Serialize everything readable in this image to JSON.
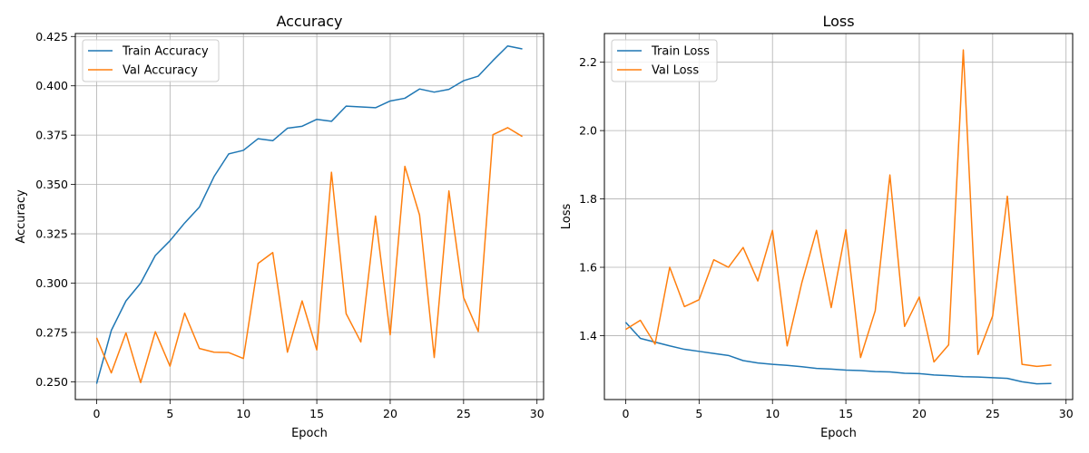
{
  "colors": {
    "train": "#1f77b4",
    "val": "#ff7f0e",
    "grid": "#b0b0b0"
  },
  "chart_data": [
    {
      "type": "line",
      "title": "Accuracy",
      "xlabel": "Epoch",
      "ylabel": "Accuracy",
      "xlim": [
        -1.45,
        30.45
      ],
      "ylim": [
        0.241,
        0.4265
      ],
      "xticks": [
        0,
        5,
        10,
        15,
        20,
        25,
        30
      ],
      "xtick_labels": [
        "0",
        "5",
        "10",
        "15",
        "20",
        "25",
        "30"
      ],
      "yticks": [
        0.25,
        0.275,
        0.3,
        0.325,
        0.35,
        0.375,
        0.4,
        0.425
      ],
      "ytick_labels": [
        "0.250",
        "0.275",
        "0.300",
        "0.325",
        "0.350",
        "0.375",
        "0.400",
        "0.425"
      ],
      "grid": true,
      "legend_position": "upper-left",
      "x": [
        0,
        1,
        2,
        3,
        4,
        5,
        6,
        7,
        8,
        9,
        10,
        11,
        12,
        13,
        14,
        15,
        16,
        17,
        18,
        19,
        20,
        21,
        22,
        23,
        24,
        25,
        26,
        27,
        28,
        29
      ],
      "series": [
        {
          "name": "Train Accuracy",
          "color": "#1f77b4",
          "values": [
            0.249,
            0.276,
            0.291,
            0.3,
            0.314,
            0.3215,
            0.3305,
            0.3385,
            0.354,
            0.3655,
            0.3673,
            0.3732,
            0.3722,
            0.3785,
            0.3795,
            0.383,
            0.382,
            0.3897,
            0.3893,
            0.3889,
            0.3923,
            0.3937,
            0.3984,
            0.3968,
            0.3982,
            0.4026,
            0.4049,
            0.4128,
            0.4202,
            0.4187
          ]
        },
        {
          "name": "Val Accuracy",
          "color": "#ff7f0e",
          "values": [
            0.2723,
            0.2545,
            0.2748,
            0.2496,
            0.2754,
            0.2579,
            0.2848,
            0.2669,
            0.265,
            0.2648,
            0.2618,
            0.31,
            0.3155,
            0.265,
            0.291,
            0.2661,
            0.3562,
            0.2845,
            0.2702,
            0.334,
            0.2738,
            0.3592,
            0.3345,
            0.2623,
            0.3467,
            0.2927,
            0.2755,
            0.3752,
            0.3788,
            0.3743
          ]
        }
      ]
    },
    {
      "type": "line",
      "title": "Loss",
      "xlabel": "Epoch",
      "ylabel": "Loss",
      "xlim": [
        -1.45,
        30.45
      ],
      "ylim": [
        1.213,
        2.284
      ],
      "xticks": [
        0,
        5,
        10,
        15,
        20,
        25,
        30
      ],
      "xtick_labels": [
        "0",
        "5",
        "10",
        "15",
        "20",
        "25",
        "30"
      ],
      "yticks": [
        1.4,
        1.6,
        1.8,
        2.0,
        2.2
      ],
      "ytick_labels": [
        "1.4",
        "1.6",
        "1.8",
        "2.0",
        "2.2"
      ],
      "grid": true,
      "legend_position": "upper-left",
      "x": [
        0,
        1,
        2,
        3,
        4,
        5,
        6,
        7,
        8,
        9,
        10,
        11,
        12,
        13,
        14,
        15,
        16,
        17,
        18,
        19,
        20,
        21,
        22,
        23,
        24,
        25,
        26,
        27,
        28,
        29
      ],
      "series": [
        {
          "name": "Train Loss",
          "color": "#1f77b4",
          "values": [
            1.439,
            1.392,
            1.381,
            1.37,
            1.36,
            1.354,
            1.348,
            1.342,
            1.327,
            1.32,
            1.316,
            1.313,
            1.309,
            1.304,
            1.302,
            1.299,
            1.298,
            1.295,
            1.294,
            1.29,
            1.289,
            1.285,
            1.283,
            1.28,
            1.279,
            1.277,
            1.275,
            1.265,
            1.259,
            1.26
          ]
        },
        {
          "name": "Val Loss",
          "color": "#ff7f0e",
          "values": [
            1.418,
            1.445,
            1.375,
            1.6,
            1.485,
            1.505,
            1.622,
            1.6,
            1.658,
            1.56,
            1.708,
            1.37,
            1.555,
            1.708,
            1.482,
            1.71,
            1.336,
            1.473,
            1.87,
            1.427,
            1.513,
            1.323,
            1.373,
            2.236,
            1.345,
            1.458,
            1.808,
            1.316,
            1.31,
            1.314
          ]
        }
      ]
    }
  ]
}
